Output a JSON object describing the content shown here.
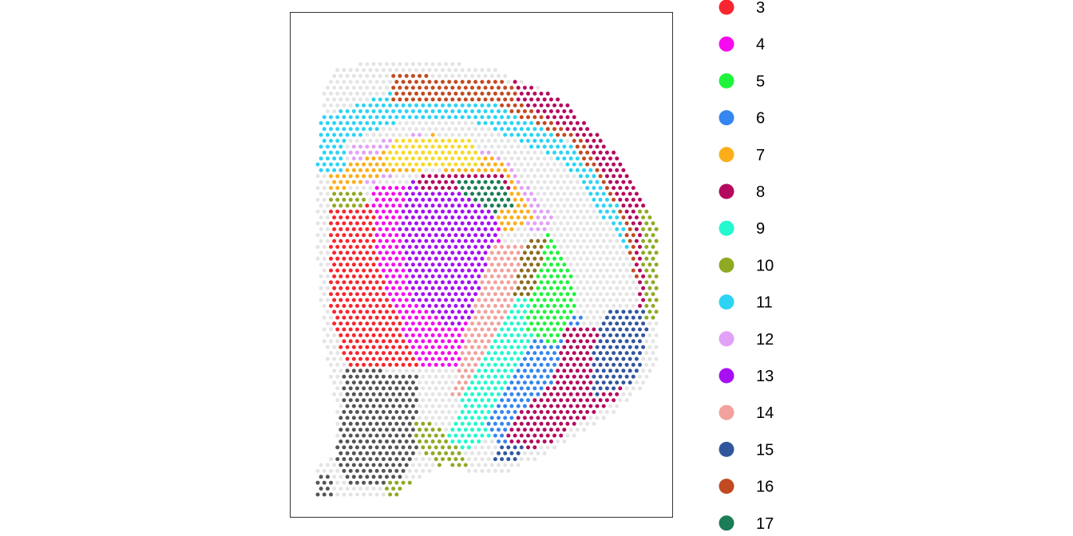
{
  "chart_data": {
    "type": "scatter",
    "title": "",
    "xlabel": "",
    "ylabel": "",
    "grid": false,
    "legend_position": "right",
    "legend": [
      {
        "label": "3",
        "color": "#F8262E"
      },
      {
        "label": "4",
        "color": "#F60BEE"
      },
      {
        "label": "5",
        "color": "#1FF43C"
      },
      {
        "label": "6",
        "color": "#3586F0"
      },
      {
        "label": "7",
        "color": "#FBAE1A"
      },
      {
        "label": "8",
        "color": "#B5095F"
      },
      {
        "label": "9",
        "color": "#23F8CE"
      },
      {
        "label": "10",
        "color": "#8EAA23"
      },
      {
        "label": "11",
        "color": "#2DD3F4"
      },
      {
        "label": "12",
        "color": "#E1A1F7"
      },
      {
        "label": "13",
        "color": "#A70FF4"
      },
      {
        "label": "14",
        "color": "#F2A19C"
      },
      {
        "label": "15",
        "color": "#31569E"
      },
      {
        "label": "16",
        "color": "#C24A21"
      },
      {
        "label": "17",
        "color": "#1A7D55"
      }
    ],
    "extra_colors": {
      "grey_cluster": "#E4E4E4",
      "dark_cluster": "#555555",
      "yellow_cluster": "#F7DA28",
      "olive_brown": "#8B6D1E"
    },
    "spot_grid": {
      "columns": 52,
      "rows": 75,
      "hex_offset": true
    },
    "regions": [
      {
        "color": "#555555",
        "poly": [
          [
            0.08,
            0.66
          ],
          [
            0.3,
            0.68
          ],
          [
            0.3,
            0.88
          ],
          [
            0.24,
            0.98
          ],
          [
            0.1,
            0.98
          ],
          [
            0.05,
            0.92
          ],
          [
            0.07,
            0.78
          ]
        ]
      },
      {
        "color": "#555555",
        "poly": [
          [
            -0.05,
            0.94
          ],
          [
            0.04,
            0.94
          ],
          [
            0.04,
            1.0
          ],
          [
            -0.05,
            1.0
          ]
        ]
      },
      {
        "color": "#F8262E",
        "poly": [
          [
            0.03,
            0.23
          ],
          [
            0.28,
            0.23
          ],
          [
            0.3,
            0.66
          ],
          [
            0.08,
            0.66
          ],
          [
            0.03,
            0.5
          ]
        ]
      },
      {
        "color": "#F60BEE",
        "poly": [
          [
            0.16,
            0.18
          ],
          [
            0.52,
            0.18
          ],
          [
            0.58,
            0.52
          ],
          [
            0.48,
            0.66
          ],
          [
            0.3,
            0.66
          ],
          [
            0.18,
            0.4
          ]
        ]
      },
      {
        "color": "#A70FF4",
        "poly": [
          [
            0.27,
            0.16
          ],
          [
            0.52,
            0.16
          ],
          [
            0.55,
            0.5
          ],
          [
            0.4,
            0.56
          ],
          [
            0.28,
            0.48
          ],
          [
            0.24,
            0.3
          ]
        ]
      },
      {
        "color": "#F2A19C",
        "poly": [
          [
            0.52,
            0.34
          ],
          [
            0.66,
            0.32
          ],
          [
            0.6,
            0.6
          ],
          [
            0.48,
            0.74
          ],
          [
            0.4,
            0.74
          ],
          [
            0.44,
            0.58
          ]
        ]
      },
      {
        "color": "#23F8CE",
        "poly": [
          [
            0.6,
            0.45
          ],
          [
            0.7,
            0.46
          ],
          [
            0.62,
            0.78
          ],
          [
            0.45,
            0.88
          ],
          [
            0.38,
            0.86
          ],
          [
            0.45,
            0.7
          ]
        ]
      },
      {
        "color": "#3586F0",
        "poly": [
          [
            0.68,
            0.52
          ],
          [
            0.84,
            0.52
          ],
          [
            0.84,
            0.7
          ],
          [
            0.7,
            0.84
          ],
          [
            0.54,
            0.88
          ],
          [
            0.5,
            0.8
          ]
        ]
      },
      {
        "color": "#1FF43C",
        "poly": [
          [
            0.68,
            0.28
          ],
          [
            0.77,
            0.3
          ],
          [
            0.78,
            0.5
          ],
          [
            0.7,
            0.6
          ],
          [
            0.62,
            0.56
          ]
        ]
      },
      {
        "color": "#8B6D1E",
        "poly": [
          [
            0.62,
            0.32
          ],
          [
            0.68,
            0.32
          ],
          [
            0.64,
            0.48
          ],
          [
            0.58,
            0.48
          ]
        ]
      },
      {
        "color": "#E4E4E4",
        "poly": [
          [
            0.18,
            0.05
          ],
          [
            0.55,
            0.1
          ],
          [
            0.75,
            0.18
          ],
          [
            0.92,
            0.38
          ],
          [
            0.92,
            0.62
          ],
          [
            0.8,
            0.58
          ],
          [
            0.75,
            0.4
          ],
          [
            0.62,
            0.2
          ],
          [
            0.4,
            0.08
          ],
          [
            0.18,
            0.1
          ]
        ]
      },
      {
        "color": "#E1A1F7",
        "poly": [
          [
            0.08,
            0.08
          ],
          [
            0.3,
            0.04
          ],
          [
            0.55,
            0.1
          ],
          [
            0.7,
            0.26
          ],
          [
            0.66,
            0.32
          ],
          [
            0.55,
            0.2
          ],
          [
            0.38,
            0.12
          ],
          [
            0.12,
            0.18
          ]
        ]
      },
      {
        "color": "#FBAE1A",
        "poly": [
          [
            0.03,
            0.14
          ],
          [
            0.34,
            0.04
          ],
          [
            0.56,
            0.12
          ],
          [
            0.65,
            0.26
          ],
          [
            0.55,
            0.31
          ],
          [
            0.5,
            0.18
          ],
          [
            0.36,
            0.13
          ],
          [
            0.2,
            0.15
          ],
          [
            0.03,
            0.2
          ]
        ]
      },
      {
        "color": "#F7DA28",
        "poly": [
          [
            0.22,
            0.05
          ],
          [
            0.45,
            0.05
          ],
          [
            0.5,
            0.12
          ],
          [
            0.3,
            0.14
          ],
          [
            0.2,
            0.12
          ]
        ]
      },
      {
        "color": "#2DD3F4",
        "poly": [
          [
            0.0,
            0.0
          ],
          [
            0.3,
            -0.1
          ],
          [
            0.6,
            -0.02
          ],
          [
            0.8,
            0.1
          ],
          [
            0.96,
            0.3
          ],
          [
            0.96,
            0.4
          ],
          [
            0.88,
            0.3
          ],
          [
            0.74,
            0.12
          ],
          [
            0.45,
            0.0
          ],
          [
            0.25,
            0.01
          ],
          [
            0.08,
            0.06
          ],
          [
            0.08,
            0.14
          ],
          [
            0.0,
            0.14
          ]
        ]
      },
      {
        "color": "#C24A21",
        "poly": [
          [
            0.22,
            -0.12
          ],
          [
            0.55,
            -0.1
          ],
          [
            0.8,
            0.0
          ],
          [
            0.96,
            0.2
          ],
          [
            1.02,
            0.48
          ],
          [
            0.96,
            0.48
          ],
          [
            0.9,
            0.24
          ],
          [
            0.75,
            0.06
          ],
          [
            0.5,
            -0.05
          ],
          [
            0.22,
            -0.05
          ]
        ]
      },
      {
        "color": "#B5095F",
        "poly": [
          [
            0.58,
            -0.1
          ],
          [
            0.8,
            -0.04
          ],
          [
            1.0,
            0.18
          ],
          [
            1.05,
            0.4
          ],
          [
            1.02,
            0.52
          ],
          [
            0.96,
            0.5
          ],
          [
            0.94,
            0.28
          ],
          [
            0.8,
            0.06
          ],
          [
            0.6,
            -0.04
          ]
        ]
      },
      {
        "color": "#B5095F",
        "poly": [
          [
            0.3,
            0.14
          ],
          [
            0.56,
            0.14
          ],
          [
            0.58,
            0.2
          ],
          [
            0.3,
            0.2
          ]
        ]
      },
      {
        "color": "#B5095F",
        "poly": [
          [
            0.74,
            0.56
          ],
          [
            0.96,
            0.56
          ],
          [
            0.9,
            0.74
          ],
          [
            0.7,
            0.86
          ],
          [
            0.58,
            0.9
          ],
          [
            0.56,
            0.82
          ],
          [
            0.7,
            0.7
          ]
        ]
      },
      {
        "color": "#31569E",
        "poly": [
          [
            0.86,
            0.5
          ],
          [
            1.0,
            0.5
          ],
          [
            0.95,
            0.7
          ],
          [
            0.82,
            0.74
          ],
          [
            0.82,
            0.62
          ]
        ]
      },
      {
        "color": "#31569E",
        "poly": [
          [
            0.54,
            0.86
          ],
          [
            0.62,
            0.86
          ],
          [
            0.6,
            0.92
          ],
          [
            0.52,
            0.92
          ]
        ]
      },
      {
        "color": "#1A7D55",
        "poly": [
          [
            0.4,
            0.16
          ],
          [
            0.56,
            0.17
          ],
          [
            0.6,
            0.24
          ],
          [
            0.52,
            0.25
          ],
          [
            0.46,
            0.22
          ]
        ]
      },
      {
        "color": "#8EAA23",
        "poly": [
          [
            0.03,
            0.2
          ],
          [
            0.14,
            0.2
          ],
          [
            0.14,
            0.24
          ],
          [
            0.03,
            0.24
          ]
        ]
      },
      {
        "color": "#8EAA23",
        "poly": [
          [
            0.28,
            0.8
          ],
          [
            0.34,
            0.8
          ],
          [
            0.46,
            0.92
          ],
          [
            0.38,
            0.94
          ],
          [
            0.3,
            0.88
          ]
        ]
      },
      {
        "color": "#8EAA23",
        "poly": [
          [
            0.2,
            0.96
          ],
          [
            0.28,
            0.96
          ],
          [
            0.28,
            1.0
          ],
          [
            0.2,
            1.0
          ]
        ]
      },
      {
        "color": "#8EAA23",
        "poly": [
          [
            0.96,
            0.24
          ],
          [
            1.04,
            0.24
          ],
          [
            1.04,
            0.54
          ],
          [
            0.98,
            0.54
          ]
        ]
      }
    ]
  }
}
